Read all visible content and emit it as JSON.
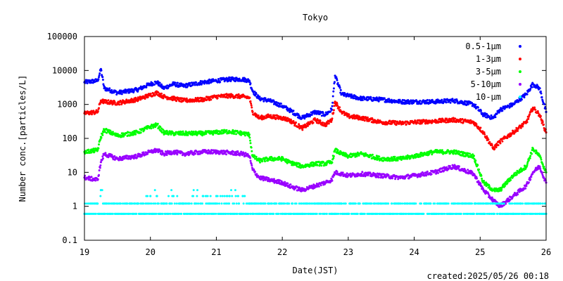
{
  "chart_data": {
    "type": "scatter",
    "title": "Tokyo",
    "xlabel": "Date(JST)",
    "ylabel": "Number conc.[particles/L]",
    "yscale": "log",
    "ylim": [
      0.1,
      100000
    ],
    "xlim": [
      19,
      26
    ],
    "x_ticks": [
      "19",
      "20",
      "21",
      "22",
      "23",
      "24",
      "25",
      "26"
    ],
    "y_ticks": [
      "0.1",
      "1",
      "10",
      "100",
      "1000",
      "10000",
      "100000"
    ],
    "legend_position": "top-right",
    "grid": false,
    "footer": "created:2025/05/26 00:18",
    "series": [
      {
        "name": "0.5-1μm",
        "color": "#0000ff",
        "x": [
          19.0,
          19.2,
          19.25,
          19.3,
          19.5,
          19.8,
          20.0,
          20.1,
          20.2,
          20.35,
          20.5,
          20.8,
          21.0,
          21.2,
          21.4,
          21.5,
          21.55,
          21.65,
          21.8,
          22.0,
          22.1,
          22.3,
          22.5,
          22.65,
          22.75,
          22.8,
          22.9,
          23.0,
          23.2,
          23.5,
          23.8,
          24.0,
          24.3,
          24.6,
          24.9,
          25.05,
          25.2,
          25.3,
          25.5,
          25.7,
          25.8,
          25.9,
          26.0
        ],
        "y": [
          4500,
          5000,
          11000,
          3000,
          2200,
          2700,
          4000,
          4500,
          3000,
          4000,
          3500,
          4500,
          5000,
          5500,
          5500,
          5000,
          2500,
          1500,
          1300,
          900,
          700,
          400,
          600,
          500,
          700,
          7000,
          2000,
          1800,
          1500,
          1400,
          1200,
          1200,
          1200,
          1300,
          1000,
          500,
          400,
          700,
          1000,
          2000,
          4000,
          3000,
          600
        ]
      },
      {
        "name": "1-3μm",
        "color": "#ff0000",
        "x": [
          19.0,
          19.2,
          19.25,
          19.3,
          19.5,
          19.8,
          20.0,
          20.1,
          20.2,
          20.35,
          20.5,
          20.8,
          21.0,
          21.2,
          21.4,
          21.5,
          21.55,
          21.65,
          21.8,
          22.0,
          22.1,
          22.3,
          22.5,
          22.65,
          22.75,
          22.8,
          22.9,
          23.0,
          23.2,
          23.5,
          23.8,
          24.0,
          24.3,
          24.6,
          24.9,
          25.05,
          25.2,
          25.3,
          25.5,
          25.7,
          25.8,
          25.9,
          26.0
        ],
        "y": [
          550,
          600,
          1300,
          1200,
          1100,
          1400,
          1900,
          2200,
          1700,
          1500,
          1300,
          1400,
          1700,
          1800,
          1700,
          1600,
          600,
          400,
          450,
          400,
          350,
          200,
          350,
          250,
          350,
          1200,
          600,
          450,
          400,
          300,
          280,
          300,
          320,
          350,
          300,
          150,
          50,
          80,
          150,
          300,
          800,
          500,
          150
        ]
      },
      {
        "name": "3-5μm",
        "color": "#00ff00",
        "x": [
          19.0,
          19.2,
          19.25,
          19.3,
          19.5,
          19.8,
          20.0,
          20.1,
          20.2,
          20.35,
          20.5,
          20.8,
          21.0,
          21.2,
          21.4,
          21.5,
          21.55,
          21.65,
          21.8,
          22.0,
          22.1,
          22.3,
          22.5,
          22.65,
          22.75,
          22.8,
          22.9,
          23.0,
          23.2,
          23.5,
          23.8,
          24.0,
          24.3,
          24.6,
          24.9,
          25.05,
          25.2,
          25.3,
          25.5,
          25.7,
          25.8,
          25.9,
          26.0
        ],
        "y": [
          40,
          45,
          110,
          180,
          120,
          150,
          220,
          250,
          150,
          140,
          140,
          140,
          150,
          160,
          140,
          130,
          30,
          22,
          25,
          25,
          20,
          15,
          18,
          18,
          20,
          45,
          35,
          30,
          35,
          25,
          25,
          30,
          40,
          40,
          30,
          5,
          3,
          3,
          8,
          15,
          50,
          30,
          10
        ]
      },
      {
        "name": "5-10μm",
        "color": "#9900ff",
        "x": [
          19.0,
          19.2,
          19.25,
          19.3,
          19.5,
          19.8,
          20.0,
          20.1,
          20.2,
          20.35,
          20.5,
          20.8,
          21.0,
          21.2,
          21.4,
          21.5,
          21.55,
          21.65,
          21.8,
          22.0,
          22.1,
          22.3,
          22.5,
          22.65,
          22.75,
          22.8,
          22.9,
          23.0,
          23.2,
          23.5,
          23.8,
          24.0,
          24.3,
          24.6,
          24.9,
          25.05,
          25.2,
          25.3,
          25.5,
          25.7,
          25.8,
          25.9,
          26.0
        ],
        "y": [
          7,
          6,
          20,
          35,
          25,
          30,
          40,
          45,
          35,
          40,
          35,
          40,
          40,
          38,
          35,
          30,
          12,
          7,
          6,
          5,
          4,
          3,
          4,
          5,
          6,
          10,
          9,
          8,
          9,
          8,
          7,
          8,
          10,
          15,
          9,
          3,
          1.5,
          1,
          2,
          4,
          10,
          15,
          5
        ]
      },
      {
        "name": "10-μm",
        "color": "#00ffff",
        "x": [
          19.0,
          19.2,
          19.25,
          19.3,
          19.5,
          19.8,
          20.0,
          20.1,
          20.2,
          20.35,
          20.5,
          20.8,
          21.0,
          21.2,
          21.4,
          21.5,
          21.55,
          21.65,
          21.8,
          22.0,
          22.1,
          22.3,
          22.5,
          22.65,
          22.75,
          22.8,
          22.9,
          23.0,
          23.2,
          23.5,
          23.8,
          24.0,
          24.3,
          24.6,
          24.9,
          25.05,
          25.2,
          25.3,
          25.5,
          25.7,
          25.8,
          25.9,
          26.0
        ],
        "y": [
          0.6,
          1.2,
          3,
          0.6,
          1.2,
          1.2,
          2,
          2,
          1.2,
          2,
          1.2,
          2,
          2,
          2,
          2,
          1.2,
          0.6,
          0.6,
          1.2,
          0.6,
          1.2,
          0.6,
          1.2,
          1.2,
          0.6,
          0.6,
          1.2,
          0.6,
          0.6,
          1.2,
          0.6,
          1.2,
          0.6,
          1.2,
          0.6,
          0.6,
          0.6,
          0.6,
          0.6,
          1.2,
          1.2,
          0.6,
          0.6
        ]
      }
    ]
  }
}
